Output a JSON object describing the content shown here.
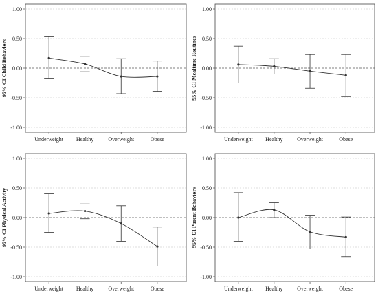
{
  "chart_data": [
    {
      "type": "line",
      "title": "",
      "ylabel": "95% CI Child Behaviors",
      "categories": [
        "Underweight",
        "Healthy",
        "Overweight",
        "Obese"
      ],
      "ylim": [
        -1.0,
        1.0
      ],
      "yticks": [
        "1.00",
        "0.50",
        "0.00",
        "-0.50",
        "-1.00"
      ],
      "grid": true,
      "reference_line": 0,
      "series": [
        {
          "values": [
            0.17,
            0.07,
            -0.14,
            -0.14
          ],
          "ci_low": [
            -0.18,
            -0.06,
            -0.43,
            -0.39
          ],
          "ci_high": [
            0.53,
            0.2,
            0.16,
            0.12
          ]
        }
      ]
    },
    {
      "type": "line",
      "title": "",
      "ylabel": "95% CI Mealtime Routines",
      "categories": [
        "Underweight",
        "Healthy",
        "Overweight",
        "Obese"
      ],
      "ylim": [
        -1.0,
        1.0
      ],
      "yticks": [
        "1.00",
        "0.50",
        "0.00",
        "-0.50",
        "-1.00"
      ],
      "grid": true,
      "reference_line": 0,
      "series": [
        {
          "values": [
            0.06,
            0.03,
            -0.05,
            -0.12
          ],
          "ci_low": [
            -0.25,
            -0.1,
            -0.34,
            -0.48
          ],
          "ci_high": [
            0.37,
            0.16,
            0.23,
            0.23
          ]
        }
      ]
    },
    {
      "type": "line",
      "title": "",
      "ylabel": "95% CI Physical Activity",
      "categories": [
        "Underweight",
        "Healthy",
        "Overweight",
        "Obese"
      ],
      "ylim": [
        -1.0,
        1.0
      ],
      "yticks": [
        "1.00",
        "0.50",
        "0.00",
        "-0.50",
        "-1.00"
      ],
      "grid": true,
      "reference_line": 0,
      "series": [
        {
          "values": [
            0.07,
            0.11,
            -0.1,
            -0.49
          ],
          "ci_low": [
            -0.25,
            -0.02,
            -0.4,
            -0.82
          ],
          "ci_high": [
            0.4,
            0.23,
            0.2,
            -0.16
          ]
        }
      ]
    },
    {
      "type": "line",
      "title": "",
      "ylabel": "95% CI Parent Behaviors",
      "categories": [
        "Underweight",
        "Healthy",
        "Overweight",
        "Obese"
      ],
      "ylim": [
        -1.0,
        1.0
      ],
      "yticks": [
        "1.00",
        "0.50",
        "0.00",
        "-0.50",
        "-1.00"
      ],
      "grid": true,
      "reference_line": 0,
      "series": [
        {
          "values": [
            0.0,
            0.13,
            -0.24,
            -0.33
          ],
          "ci_low": [
            -0.4,
            0.0,
            -0.53,
            -0.66
          ],
          "ci_high": [
            0.42,
            0.25,
            0.04,
            0.01
          ]
        }
      ]
    }
  ]
}
